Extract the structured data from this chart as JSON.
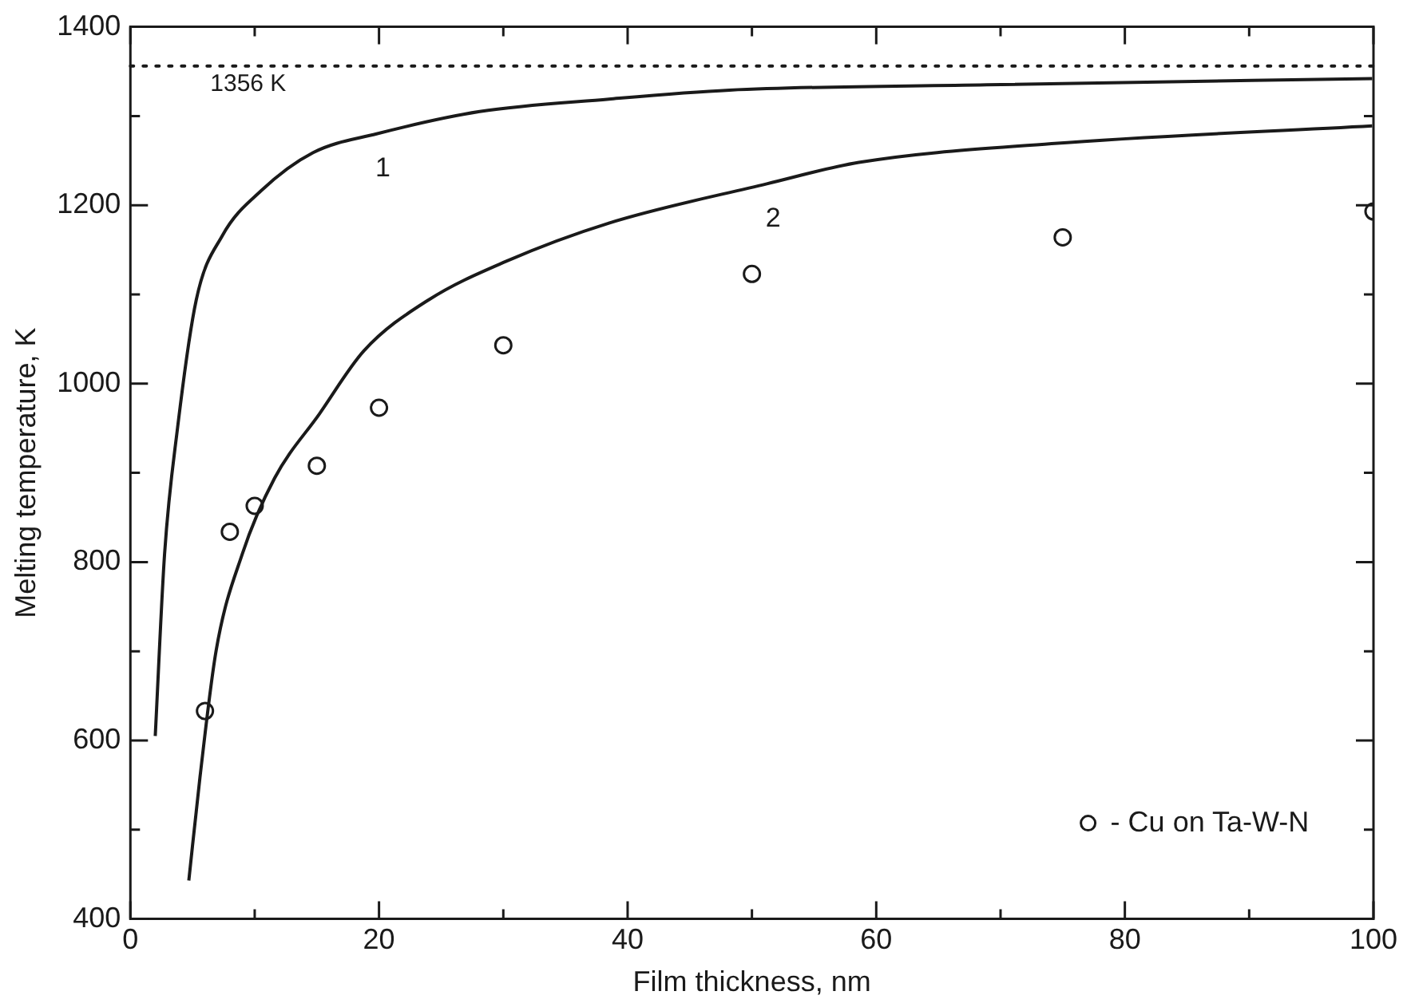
{
  "chart_data": {
    "type": "line",
    "xlabel": "Film thickness, nm",
    "ylabel": "Melting temperature, K",
    "xlim": [
      0,
      100
    ],
    "ylim": [
      400,
      1400
    ],
    "xticks": [
      0,
      {
        "value": 10,
        "label": null
      },
      20,
      {
        "value": 30,
        "label": null
      },
      40,
      {
        "value": 50,
        "label": null
      },
      60,
      {
        "value": 70,
        "label": null
      },
      80,
      {
        "value": 90,
        "label": null
      },
      100
    ],
    "yticks": [
      400,
      {
        "value": 500,
        "label": null
      },
      600,
      {
        "value": 700,
        "label": null
      },
      800,
      {
        "value": 900,
        "label": null
      },
      1000,
      {
        "value": 1100,
        "label": null
      },
      1200,
      {
        "value": 1300,
        "label": null
      },
      1400
    ],
    "grid": false,
    "legend": "bottom right",
    "series": [
      {
        "name": "1",
        "color": "#1a1a1a",
        "marker": "none",
        "line_style": "solid",
        "x": [
          2.0,
          2.75,
          3.8,
          5.3,
          7.4,
          10.5,
          14.7,
          19.8,
          28.1,
          38.5,
          48.2,
          68.9,
          99.9
        ],
        "values": [
          605,
          809,
          951,
          1094,
          1166,
          1216,
          1259,
          1280,
          1305,
          1319,
          1329,
          1335,
          1342
        ]
      },
      {
        "name": "2",
        "color": "#1a1a1a",
        "marker": "none",
        "line_style": "solid",
        "x": [
          4.7,
          5.6,
          6.9,
          9.0,
          11.6,
          15.2,
          18.8,
          24,
          30.2,
          38.5,
          51.2,
          58.6,
          74.1,
          99.9
        ],
        "values": [
          443,
          559,
          701,
          809,
          894,
          966,
          1037,
          1094,
          1137,
          1180,
          1224,
          1248,
          1269,
          1289
        ]
      },
      {
        "type": "scatter",
        "name": "- Cu on Ta-W-N",
        "color": "#1a1a1a",
        "marker": "circle",
        "x": [
          6,
          8,
          10,
          15,
          20,
          30,
          50,
          75,
          100
        ],
        "values": [
          633,
          834,
          863,
          908,
          973,
          1043,
          1123,
          1164,
          1193
        ]
      }
    ],
    "ref_lines": [
      {
        "axis": "y",
        "value": 1356,
        "label": "1356 K",
        "color": "#1a1a1a",
        "line_style": "dotted"
      }
    ]
  }
}
